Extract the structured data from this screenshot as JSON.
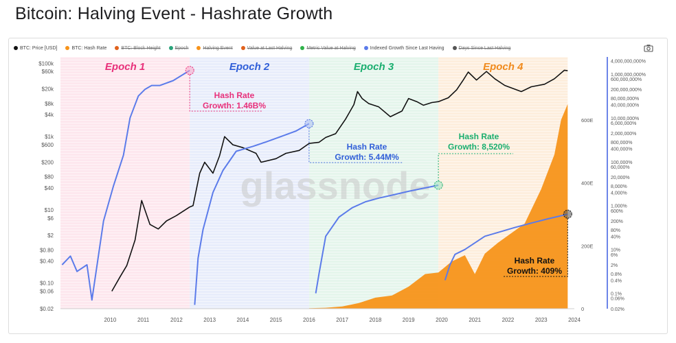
{
  "title": "Bitcoin: Halving Event - Hashrate Growth",
  "legend": [
    {
      "label": "BTC: Price [USD]",
      "color": "#111111",
      "active": true
    },
    {
      "label": "BTC: Hash Rate",
      "color": "#f7931a",
      "active": true
    },
    {
      "label": "BTC: Block Height",
      "color": "#e0611c",
      "active": false
    },
    {
      "label": "Epoch",
      "color": "#29a37a",
      "active": false
    },
    {
      "label": "Halving Event",
      "color": "#f7931a",
      "active": false
    },
    {
      "label": "Value at Last Halving",
      "color": "#e0611c",
      "active": false
    },
    {
      "label": "Metric Value at Halving",
      "color": "#2fb24a",
      "active": false
    },
    {
      "label": "Indexed Growth Since Last Having",
      "color": "#5b7bea",
      "active": true
    },
    {
      "label": "Days Since Last Halving",
      "color": "#555555",
      "active": false
    }
  ],
  "icons": {
    "camera": "camera-icon"
  },
  "watermark": "glassnode",
  "chart_data": {
    "type": "line",
    "x_ticks": [
      "2010",
      "2011",
      "2012",
      "2013",
      "2014",
      "2015",
      "2016",
      "2017",
      "2018",
      "2019",
      "2020",
      "2021",
      "2022",
      "2023",
      "2024"
    ],
    "y_left_ticks": [
      "$100k",
      "$60k",
      "$20k",
      "$8k",
      "$4k",
      "$1k",
      "$600",
      "$200",
      "$80",
      "$40",
      "$10",
      "$6",
      "$2",
      "$0.80",
      "$0.40",
      "$0.10",
      "$0.06",
      "$0.02"
    ],
    "y_mid_ticks": [
      "600E",
      "400E",
      "200E",
      "0"
    ],
    "y_right_ticks": [
      "4,000,000,000%",
      "1,000,000,000%",
      "600,000,000%",
      "200,000,000%",
      "80,000,000%",
      "40,000,000%",
      "10,000,000%",
      "6,000,000%",
      "2,000,000%",
      "800,000%",
      "400,000%",
      "100,000%",
      "60,000%",
      "20,000%",
      "8,000%",
      "4,000%",
      "1,000%",
      "600%",
      "200%",
      "80%",
      "40%",
      "10%",
      "6%",
      "2%",
      "0.8%",
      "0.4%",
      "0.1%",
      "0.06%",
      "0.02%"
    ],
    "epochs": [
      {
        "label": "Epoch 1",
        "start": 2009.0,
        "end": 2012.9,
        "color": "#e8307a"
      },
      {
        "label": "Epoch 2",
        "start": 2012.9,
        "end": 2016.5,
        "color": "#2f5ed8"
      },
      {
        "label": "Epoch 3",
        "start": 2016.5,
        "end": 2020.4,
        "color": "#1aae6f"
      },
      {
        "label": "Epoch 4",
        "start": 2020.4,
        "end": 2024.3,
        "color": "#f08a1c"
      }
    ],
    "annotations": [
      {
        "line1": "Hash Rate",
        "line2": "Growth: 1.46B%",
        "color": "#e8307a"
      },
      {
        "line1": "Hash Rate",
        "line2": "Growth: 5.44M%",
        "color": "#2f5ed8"
      },
      {
        "line1": "Hash Rate",
        "line2": "Growth: 8,520%",
        "color": "#1aae6f"
      },
      {
        "line1": "Hash Rate",
        "line2": "Growth: 409%",
        "color": "#111111"
      }
    ],
    "series": [
      {
        "name": "BTC: Price [USD]",
        "color": "#111111",
        "x": [
          2010.55,
          2010.8,
          2011.0,
          2011.25,
          2011.45,
          2011.7,
          2011.95,
          2012.2,
          2012.5,
          2012.9,
          2013.0,
          2013.2,
          2013.35,
          2013.6,
          2013.8,
          2013.95,
          2014.2,
          2014.5,
          2014.9,
          2015.05,
          2015.5,
          2015.8,
          2016.2,
          2016.5,
          2016.8,
          2017.0,
          2017.3,
          2017.6,
          2017.85,
          2017.96,
          2018.1,
          2018.3,
          2018.6,
          2018.95,
          2019.3,
          2019.5,
          2019.75,
          2019.95,
          2020.2,
          2020.4,
          2020.7,
          2020.95,
          2021.15,
          2021.3,
          2021.55,
          2021.85,
          2022.1,
          2022.4,
          2022.9,
          2023.2,
          2023.6,
          2023.9,
          2024.2,
          2024.3
        ],
        "y": [
          0.06,
          0.15,
          0.3,
          1.5,
          18,
          4,
          3,
          5,
          7,
          12,
          13,
          100,
          200,
          100,
          300,
          1000,
          600,
          500,
          350,
          200,
          250,
          350,
          420,
          650,
          700,
          950,
          1200,
          3000,
          7500,
          17000,
          11000,
          8000,
          6500,
          3500,
          5000,
          11000,
          9000,
          7200,
          8500,
          9000,
          11500,
          19000,
          35000,
          58000,
          35000,
          60000,
          38000,
          25000,
          17000,
          23000,
          27000,
          38000,
          65000,
          63000
        ]
      },
      {
        "name": "BTC: Hash Rate",
        "color": "#f7931a",
        "unit": "EH/s",
        "x": [
          2016.5,
          2017.0,
          2017.5,
          2018.0,
          2018.5,
          2019.0,
          2019.5,
          2020.0,
          2020.4,
          2020.8,
          2021.2,
          2021.5,
          2021.8,
          2022.2,
          2022.6,
          2023.0,
          2023.5,
          2023.9,
          2024.1,
          2024.3
        ],
        "y": [
          1.5,
          3,
          7,
          18,
          35,
          42,
          70,
          110,
          115,
          150,
          170,
          110,
          175,
          210,
          240,
          270,
          380,
          490,
          600,
          650
        ]
      },
      {
        "name": "Indexed Growth Since Last Having",
        "color": "#5b7bea",
        "x": [
          2009.05,
          2009.3,
          2009.5,
          2009.8,
          2009.95,
          2010.3,
          2010.6,
          2010.9,
          2011.1,
          2011.35,
          2011.55,
          2011.75,
          2012.0,
          2012.4,
          2012.9,
          2013.05,
          2013.15,
          2013.3,
          2013.6,
          2013.9,
          2014.3,
          2014.8,
          2015.2,
          2015.7,
          2016.1,
          2016.5,
          2016.7,
          2016.8,
          2017.0,
          2017.4,
          2017.8,
          2018.2,
          2018.6,
          2019.0,
          2019.5,
          2019.9,
          2020.4,
          2020.6,
          2020.75,
          2020.9,
          2021.2,
          2021.5,
          2021.8,
          2022.2,
          2022.7,
          2023.2,
          2023.7,
          2024.0,
          2024.3
        ],
        "y": [
          2,
          5,
          1,
          2,
          0.05,
          200,
          8000,
          200000,
          10000000,
          100000000,
          200000000,
          300000000,
          300000000,
          500000000,
          1460000000,
          0.03,
          4,
          80,
          4000,
          40000,
          300000,
          500000,
          800000,
          1500000,
          2500000,
          5440000,
          0.1,
          0.8,
          40,
          300,
          800,
          1500,
          2200,
          3000,
          4500,
          6000,
          8520,
          0.4,
          2,
          6,
          10,
          20,
          40,
          60,
          100,
          160,
          250,
          320,
          409
        ]
      }
    ]
  }
}
